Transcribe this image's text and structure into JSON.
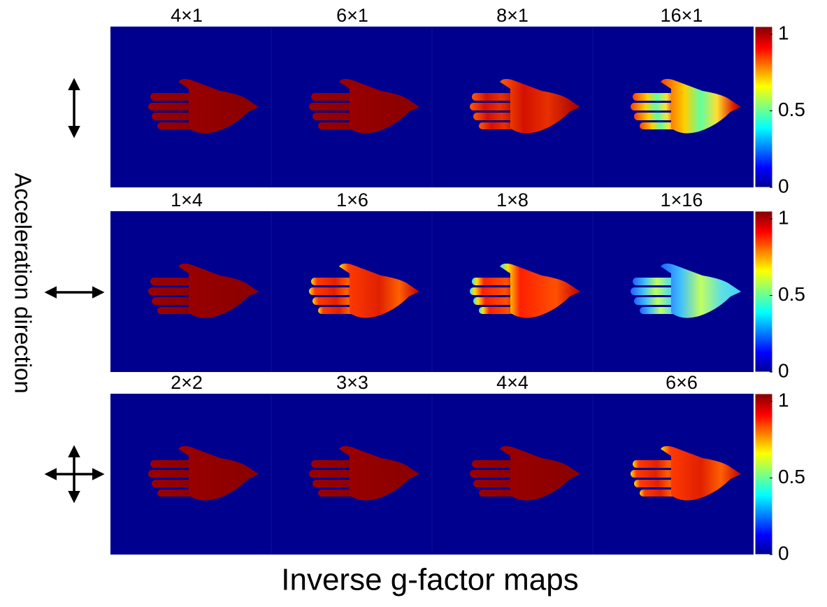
{
  "y_label": "Acceleration direction",
  "x_label": "Inverse g-factor maps",
  "panels": [
    {
      "labels": [
        "4×1",
        "6×1",
        "8×1",
        "16×1"
      ],
      "colorbar_lim": [
        0,
        1.05
      ],
      "colorbar_ticks": [
        0,
        0.5,
        1
      ]
    },
    {
      "labels": [
        "1×4",
        "1×6",
        "1×8",
        "1×16"
      ],
      "colorbar_lim": [
        0,
        1.05
      ],
      "colorbar_ticks": [
        0,
        0.5,
        1
      ]
    },
    {
      "labels": [
        "2×2",
        "3×3",
        "4×4",
        "6×6"
      ],
      "colorbar_lim": [
        0,
        1.05
      ],
      "colorbar_ticks": [
        0,
        0.5,
        1
      ]
    }
  ]
}
